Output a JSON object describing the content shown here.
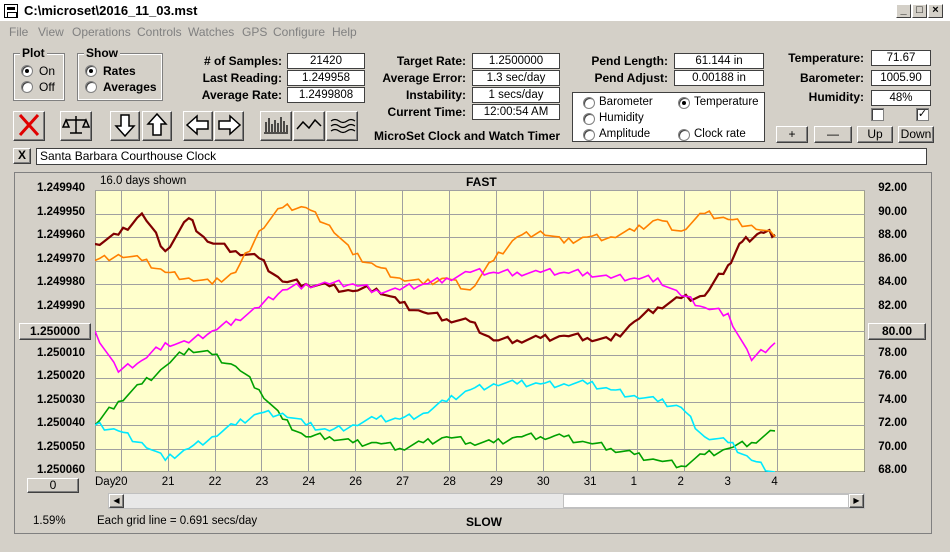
{
  "window": {
    "title": "C:\\microset\\2016_11_03.mst"
  },
  "menu": [
    "File",
    "View",
    "Operations",
    "Controls",
    "Watches",
    "GPS",
    "Configure",
    "Help"
  ],
  "plot_group": {
    "title": "Plot",
    "on": "On",
    "off": "Off",
    "selected": "On"
  },
  "show_group": {
    "title": "Show",
    "rates": "Rates",
    "averages": "Averages",
    "selected": "Rates"
  },
  "stats": {
    "samples_label": "# of Samples:",
    "samples": "21420",
    "last_reading_label": "Last Reading:",
    "last_reading": "1.249958",
    "average_rate_label": "Average Rate:",
    "average_rate": "1.2499808"
  },
  "targets": {
    "target_rate_label": "Target Rate:",
    "target_rate": "1.2500000",
    "average_error_label": "Average Error:",
    "average_error": "1.3 sec/day",
    "instability_label": "Instability:",
    "instability": "1 secs/day",
    "current_time_label": "Current Time:",
    "current_time": "12:00:54 AM"
  },
  "app_caption": "MicroSet Clock and Watch Timer",
  "pendulum": {
    "length_label": "Pend Length:",
    "length": "61.144 in",
    "adjust_label": "Pend Adjust:",
    "adjust": "0.00188 in"
  },
  "sensor_select": {
    "options": [
      {
        "label": "Barometer",
        "color": "#ff8000",
        "selected": false
      },
      {
        "label": "Temperature",
        "color": "#00a000",
        "selected": true
      },
      {
        "label": "Humidity",
        "color": "#ff00ff",
        "selected": false
      },
      {
        "label": "Clock rate",
        "color": "#800000",
        "selected": false
      },
      {
        "label": "Amplitude",
        "color": "#00c0ff",
        "selected": false
      }
    ]
  },
  "env": {
    "temperature_label": "Temperature:",
    "temperature": "71.67",
    "barometer_label": "Barometer:",
    "barometer": "1005.90",
    "humidity_label": "Humidity:",
    "humidity": "48%",
    "check1": false,
    "check2": true
  },
  "scale_buttons": {
    "plus": "+",
    "minus": "—",
    "up": "Up",
    "down": "Down"
  },
  "clock_name": "Santa Barbara Courthouse Clock",
  "close_label": "X",
  "chart_info": {
    "days_shown": "16.0 days shown",
    "fast": "FAST",
    "slow": "SLOW",
    "grid_note": "Each grid line = 0.691 secs/day",
    "percent": "1.59%",
    "left_center": "1.250000",
    "right_center": "80.00",
    "left_bottom_button": "0",
    "day_label": "Day:"
  },
  "colors": {
    "clock_rate": "#800000",
    "barometer": "#ff8000",
    "humidity": "#ff00ff",
    "temperature": "#00a000",
    "amplitude": "#00e8ff",
    "plot_bg": "#ffffcc",
    "grid": "#a0a0a0"
  },
  "chart_data": {
    "type": "line",
    "x_label": "Day",
    "x_ticks": [
      "20",
      "21",
      "22",
      "23",
      "24",
      "26",
      "27",
      "28",
      "29",
      "30",
      "31",
      "1",
      "2",
      "3",
      "4"
    ],
    "y_left_ticks": [
      "1.249940",
      "1.249950",
      "1.249960",
      "1.249970",
      "1.249980",
      "1.249990",
      "1.250000",
      "1.250010",
      "1.250020",
      "1.250030",
      "1.250040",
      "1.250050",
      "1.250060"
    ],
    "y_right_ticks": [
      "92.00",
      "90.00",
      "88.00",
      "86.00",
      "84.00",
      "82.00",
      "80.00",
      "78.00",
      "76.00",
      "74.00",
      "72.00",
      "70.00",
      "68.00"
    ],
    "x_range": [
      0,
      14.5
    ],
    "y_left_range": [
      1.24994,
      1.25006
    ],
    "y_right_range": [
      68,
      92
    ],
    "series": [
      {
        "name": "Clock rate",
        "axis": "left",
        "color": "#800000",
        "x": [
          0,
          0.5,
          1,
          1.5,
          2,
          2.4,
          3,
          3.5,
          4,
          4.5,
          5,
          5.5,
          6,
          6.5,
          7,
          7.5,
          8,
          8.5,
          9,
          9.5,
          10,
          10.5,
          11,
          11.5,
          12,
          12.5,
          13,
          13.5,
          13.8,
          14.2,
          14.5
        ],
        "y": [
          1.249963,
          1.249959,
          1.24995,
          1.249966,
          1.249952,
          1.249962,
          1.249966,
          1.249969,
          1.249979,
          1.24998,
          1.249981,
          1.249983,
          1.249982,
          1.249988,
          1.249992,
          1.249995,
          1.249996,
          1.250004,
          1.250004,
          1.250003,
          1.250002,
          1.250003,
          1.250004,
          1.249996,
          1.24999,
          1.249986,
          1.249985,
          1.249972,
          1.249962,
          1.249958,
          1.249959
        ]
      },
      {
        "name": "Barometer",
        "axis": "right",
        "color": "#ff8000",
        "x": [
          0,
          0.5,
          1,
          1.5,
          2,
          2.5,
          3,
          3.5,
          4,
          4.5,
          5,
          5.5,
          6,
          6.5,
          7,
          7.5,
          8,
          8.5,
          9,
          9.5,
          10,
          10.5,
          11,
          11.5,
          12,
          12.5,
          13,
          13.5,
          14,
          14.5
        ],
        "y": [
          86,
          86.5,
          86,
          85,
          84.5,
          84,
          85,
          88.5,
          90.5,
          90.5,
          89,
          86.5,
          85.5,
          84.5,
          84,
          84.5,
          83.5,
          86,
          88,
          88.5,
          87.5,
          88,
          88,
          88.5,
          89.5,
          88.5,
          90,
          89.5,
          89,
          88
        ]
      },
      {
        "name": "Humidity",
        "axis": "right",
        "color": "#ff00ff",
        "x": [
          0,
          0.5,
          1,
          1.5,
          2,
          2.5,
          3,
          3.5,
          4,
          4.5,
          5,
          5.5,
          6,
          6.5,
          7,
          7.5,
          8,
          8.5,
          9,
          9.5,
          10,
          10.5,
          11,
          11.5,
          12,
          12.5,
          13,
          13.5,
          14,
          14.5
        ],
        "y": [
          80,
          76.5,
          77.5,
          79,
          79,
          80,
          81,
          82,
          83.5,
          84,
          84,
          84,
          83.5,
          83.5,
          84,
          84.5,
          85,
          85,
          85,
          85,
          85,
          85,
          84.5,
          84.5,
          84.5,
          83,
          82,
          81.5,
          77.5,
          79
        ]
      },
      {
        "name": "Temperature",
        "axis": "right",
        "color": "#00a000",
        "x": [
          0,
          0.5,
          1,
          1.5,
          2,
          2.5,
          3,
          3.5,
          4,
          4.5,
          5,
          5.5,
          6,
          6.5,
          7,
          7.5,
          8,
          8.5,
          9,
          9.5,
          10,
          10.5,
          11,
          11.5,
          12,
          12.5,
          13,
          13.5,
          14,
          14.5
        ],
        "y": [
          72,
          74,
          75.5,
          77,
          78.5,
          78,
          77,
          75,
          72.5,
          71,
          71,
          70.5,
          70.5,
          70,
          70.5,
          71,
          70.5,
          70.5,
          71,
          71,
          71,
          70.5,
          70,
          69.5,
          69,
          68.5,
          69.5,
          70,
          70.5,
          71.5
        ]
      },
      {
        "name": "Amplitude",
        "axis": "right",
        "color": "#00e8ff",
        "x": [
          0,
          0.5,
          1,
          1.5,
          2,
          2.5,
          3,
          3.5,
          4,
          4.5,
          5,
          5.5,
          6,
          6.5,
          7,
          7.5,
          8,
          8.5,
          9,
          9.5,
          10,
          10.5,
          11,
          11.5,
          12,
          12.5,
          13,
          13.5,
          14,
          14.5
        ],
        "y": [
          72,
          71.5,
          70.5,
          69,
          70,
          71,
          72,
          73,
          73,
          72,
          71.5,
          72,
          72.5,
          72.5,
          73,
          74,
          75,
          75.5,
          75.5,
          75.5,
          75.5,
          75.5,
          75,
          74.5,
          74,
          73.5,
          71,
          70.5,
          69,
          68
        ]
      }
    ]
  }
}
